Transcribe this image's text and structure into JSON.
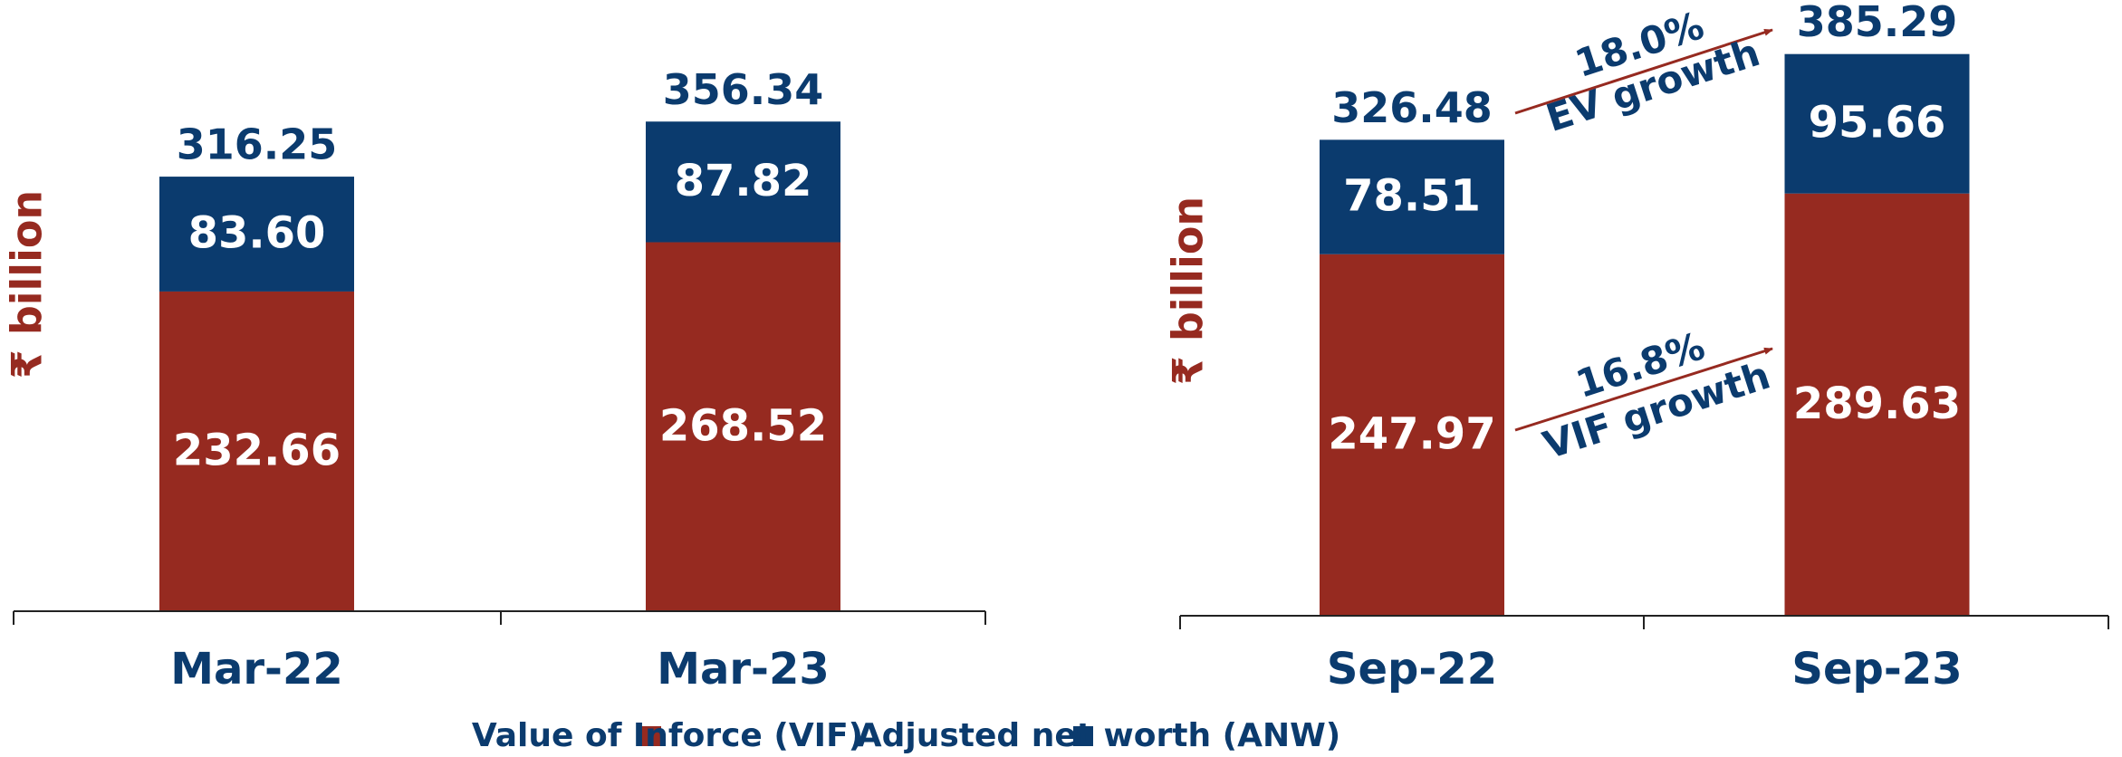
{
  "chart_data": [
    {
      "type": "stacked_bar",
      "y_label": "₹ billion",
      "categories": [
        "Mar-22",
        "Mar-23"
      ],
      "series": [
        {
          "name": "Value of Inforce (VIF)",
          "color": "#962a20",
          "values": [
            232.66,
            268.52
          ]
        },
        {
          "name": "Adjusted net worth (ANW)",
          "color": "#0b3b6e",
          "values": [
            83.6,
            87.82
          ]
        }
      ],
      "value_labels": [
        [
          "232.66",
          "268.52"
        ],
        [
          "83.60",
          "87.82"
        ]
      ],
      "totals": [
        316.25,
        356.34
      ],
      "ylim": [
        0,
        400
      ]
    },
    {
      "type": "stacked_bar",
      "y_label": "₹ billion",
      "categories": [
        "Sep-22",
        "Sep-23"
      ],
      "series": [
        {
          "color": "#962a20",
          "values": [
            247.97,
            289.63
          ]
        },
        {
          "color": "#0b3b6e",
          "values": [
            78.51,
            95.66
          ]
        }
      ],
      "totals": [
        326.48,
        385.29
      ],
      "ylim": [
        0,
        400
      ],
      "annotations": [
        {
          "value": "18.0%",
          "text": "EV growth"
        },
        {
          "value": "16.8%",
          "text": "VIF growth"
        }
      ]
    }
  ]
}
